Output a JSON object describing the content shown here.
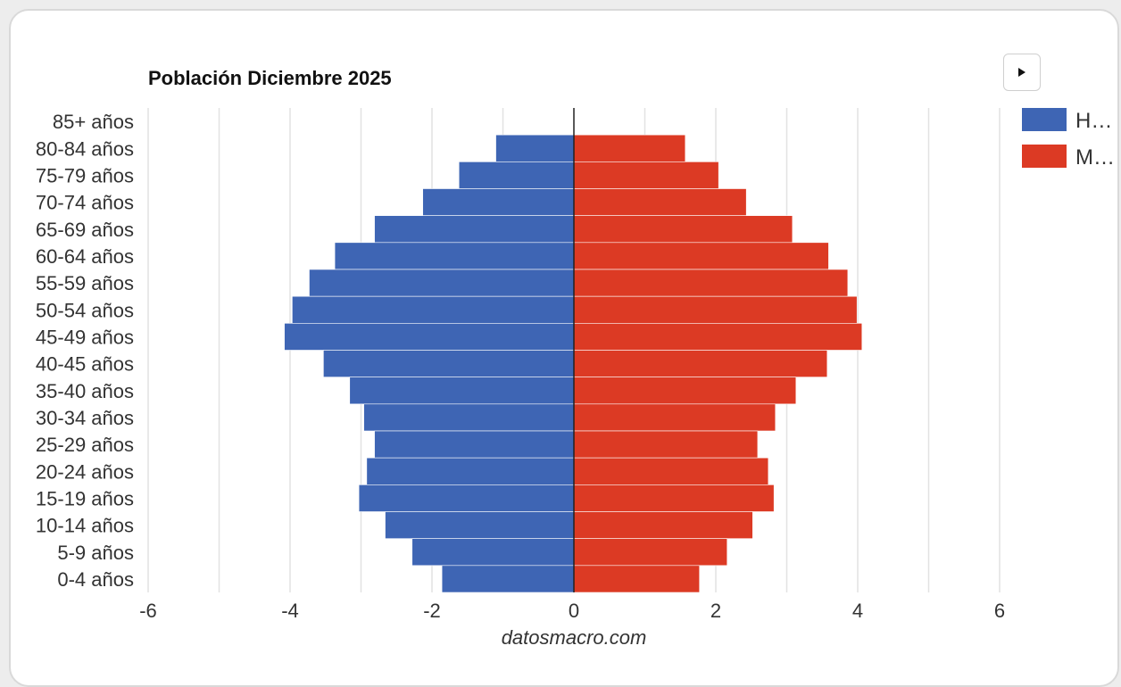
{
  "chart_data": {
    "type": "bar",
    "orientation": "horizontal",
    "stacked": "diverging",
    "title": "Población Diciembre 2025",
    "watermark": "datosmacro.com",
    "categories": [
      "85+ años",
      "80-84 años",
      "75-79 años",
      "70-74 años",
      "65-69 años",
      "60-64 años",
      "55-59 años",
      "50-54 años",
      "45-49 años",
      "40-45 años",
      "35-40 años",
      "30-34 años",
      "25-29 años",
      "20-24 años",
      "15-19 años",
      "10-14 años",
      "5-9 años",
      "0-4 años"
    ],
    "series": [
      {
        "name": "H…",
        "color": "#3e65b4",
        "values": [
          0,
          -1.1,
          -1.62,
          -2.13,
          -2.81,
          -3.37,
          -3.73,
          -3.97,
          -4.08,
          -3.53,
          -3.16,
          -2.96,
          -2.81,
          -2.92,
          -3.03,
          -2.66,
          -2.28,
          -1.86
        ]
      },
      {
        "name": "M…",
        "color": "#dc3a24",
        "values": [
          0,
          1.57,
          2.04,
          2.43,
          3.08,
          3.59,
          3.86,
          3.99,
          4.06,
          3.57,
          3.13,
          2.84,
          2.59,
          2.74,
          2.82,
          2.52,
          2.16,
          1.77
        ]
      }
    ],
    "xlim": [
      -6,
      6
    ],
    "xticks": [
      -6,
      -4,
      -2,
      0,
      2,
      4,
      6
    ],
    "grid": true,
    "legend": "right"
  },
  "controls": {
    "play_icon": "play-icon"
  }
}
